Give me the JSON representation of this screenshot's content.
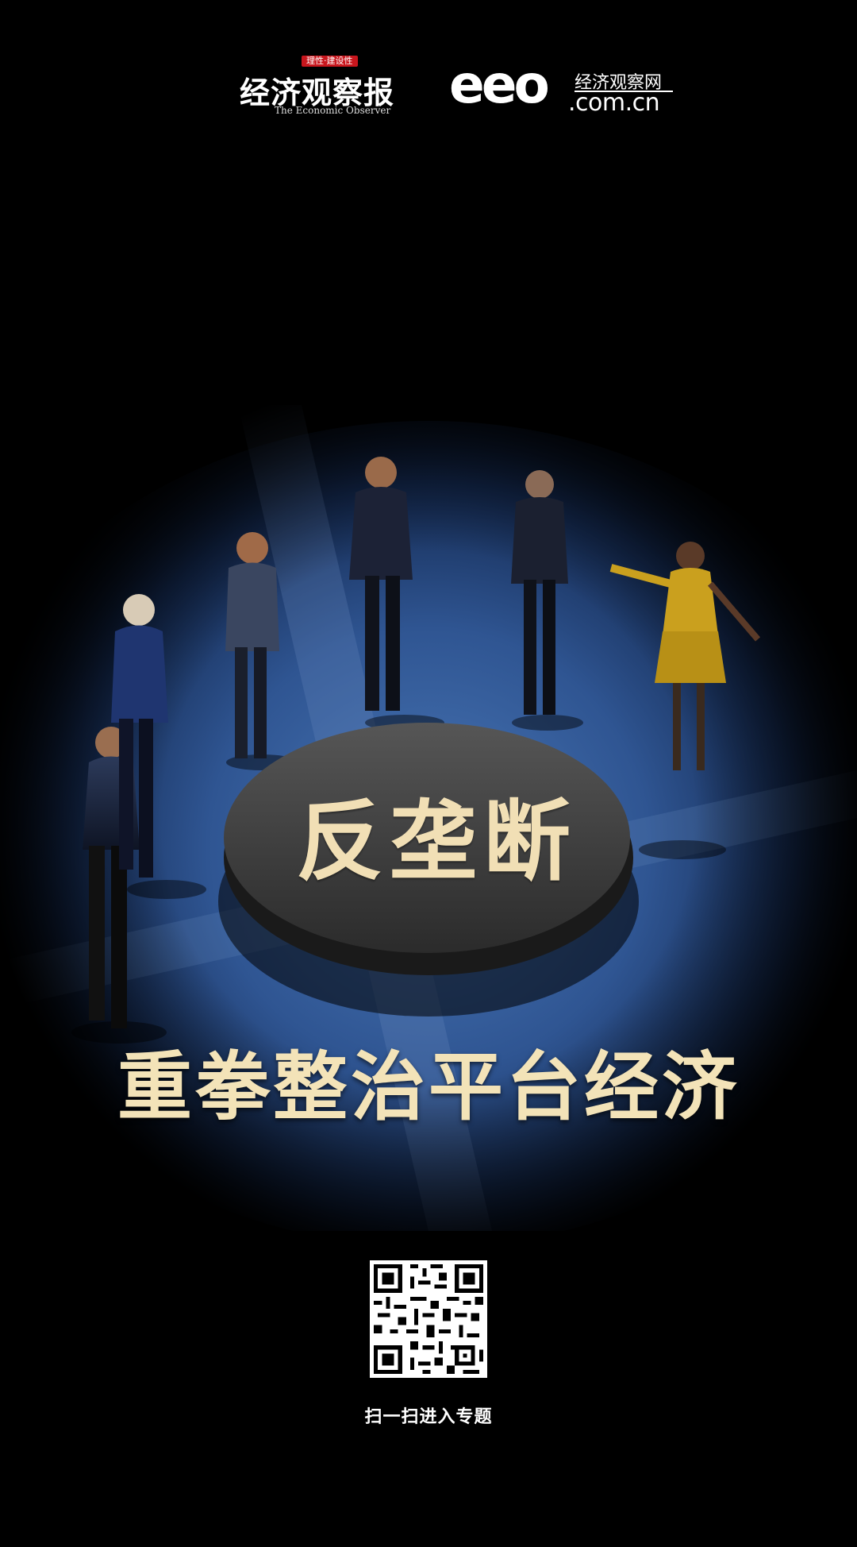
{
  "header": {
    "eo_logo": {
      "badge": "理性·建设性",
      "name_cn": "经济观察报",
      "name_en": "The Economic Observer"
    },
    "eeo_logo": {
      "mark": "eeo",
      "name_cn": "经济观察网",
      "domain": ".com.cn"
    }
  },
  "hero": {
    "disc_text": "反垄断",
    "headline": "重拳整治平台经济"
  },
  "qr": {
    "caption": "扫一扫进入专题"
  },
  "colors": {
    "background": "#000000",
    "headline": "#f3e3b8",
    "badge_red": "#c8161d",
    "table_blue": "#3a66a8"
  }
}
